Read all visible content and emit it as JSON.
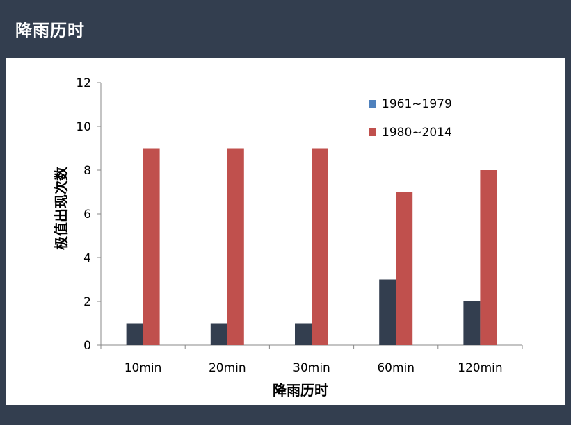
{
  "header": {
    "title": "降雨历时"
  },
  "chart_data": {
    "type": "bar",
    "categories": [
      "10min",
      "20min",
      "30min",
      "60min",
      "120min"
    ],
    "series": [
      {
        "name": "1961~1979",
        "values": [
          1,
          1,
          1,
          3,
          2
        ],
        "color": "#333e4f",
        "legend_color": "#4f81bd"
      },
      {
        "name": "1980~2014",
        "values": [
          9,
          9,
          9,
          7,
          8
        ],
        "color": "#c0504d",
        "legend_color": "#c0504d"
      }
    ],
    "title": "",
    "xlabel": "降雨历时",
    "ylabel": "极值出现次数",
    "ylim": [
      0,
      12
    ],
    "yticks": [
      0,
      2,
      4,
      6,
      8,
      10,
      12
    ],
    "grid": false,
    "legend_position": "top-right"
  }
}
